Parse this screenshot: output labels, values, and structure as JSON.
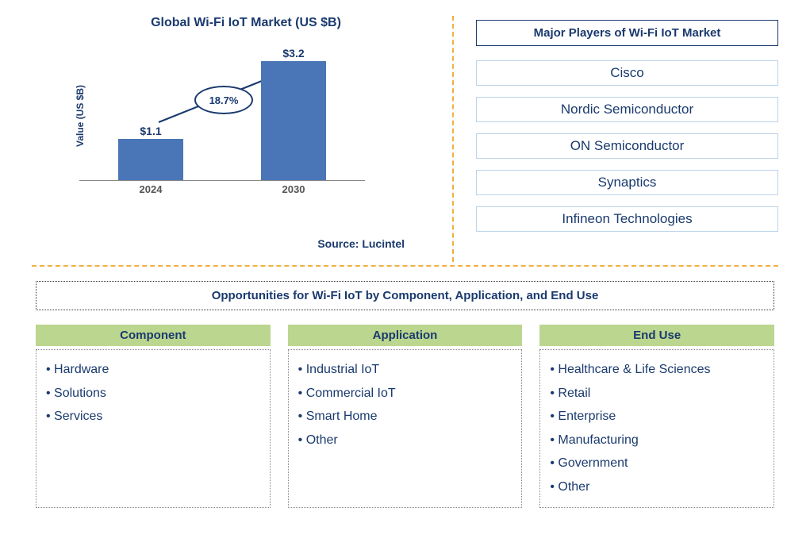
{
  "chart": {
    "title": "Global Wi-Fi IoT Market (US $B)",
    "ylabel": "Value (US $B)",
    "bars": [
      {
        "label": "2024",
        "value_text": "$1.1",
        "value": 1.1
      },
      {
        "label": "2030",
        "value_text": "$3.2",
        "value": 3.2
      }
    ],
    "max_value": 3.2,
    "bar_color": "#4a76b8",
    "cagr_text": "18.7%",
    "source": "Source: Lucintel"
  },
  "players": {
    "title": "Major Players of Wi-Fi IoT Market",
    "list": [
      "Cisco",
      "Nordic Semiconductor",
      "ON Semiconductor",
      "Synaptics",
      "Infineon Technologies"
    ]
  },
  "opportunities": {
    "title": "Opportunities for Wi-Fi IoT by Component, Application, and End Use",
    "columns": [
      {
        "header": "Component",
        "items": [
          "Hardware",
          "Solutions",
          "Services"
        ]
      },
      {
        "header": "Application",
        "items": [
          "Industrial IoT",
          "Commercial IoT",
          "Smart Home",
          "Other"
        ]
      },
      {
        "header": "End Use",
        "items": [
          "Healthcare & Life Sciences",
          "Retail",
          "Enterprise",
          "Manufacturing",
          "Government",
          "Other"
        ]
      }
    ]
  },
  "colors": {
    "text_primary": "#1a3a6e",
    "bar": "#4a76b8",
    "header_bg": "#bbd68e",
    "divider": "#f0b040",
    "player_border": "#bcd3ea"
  }
}
